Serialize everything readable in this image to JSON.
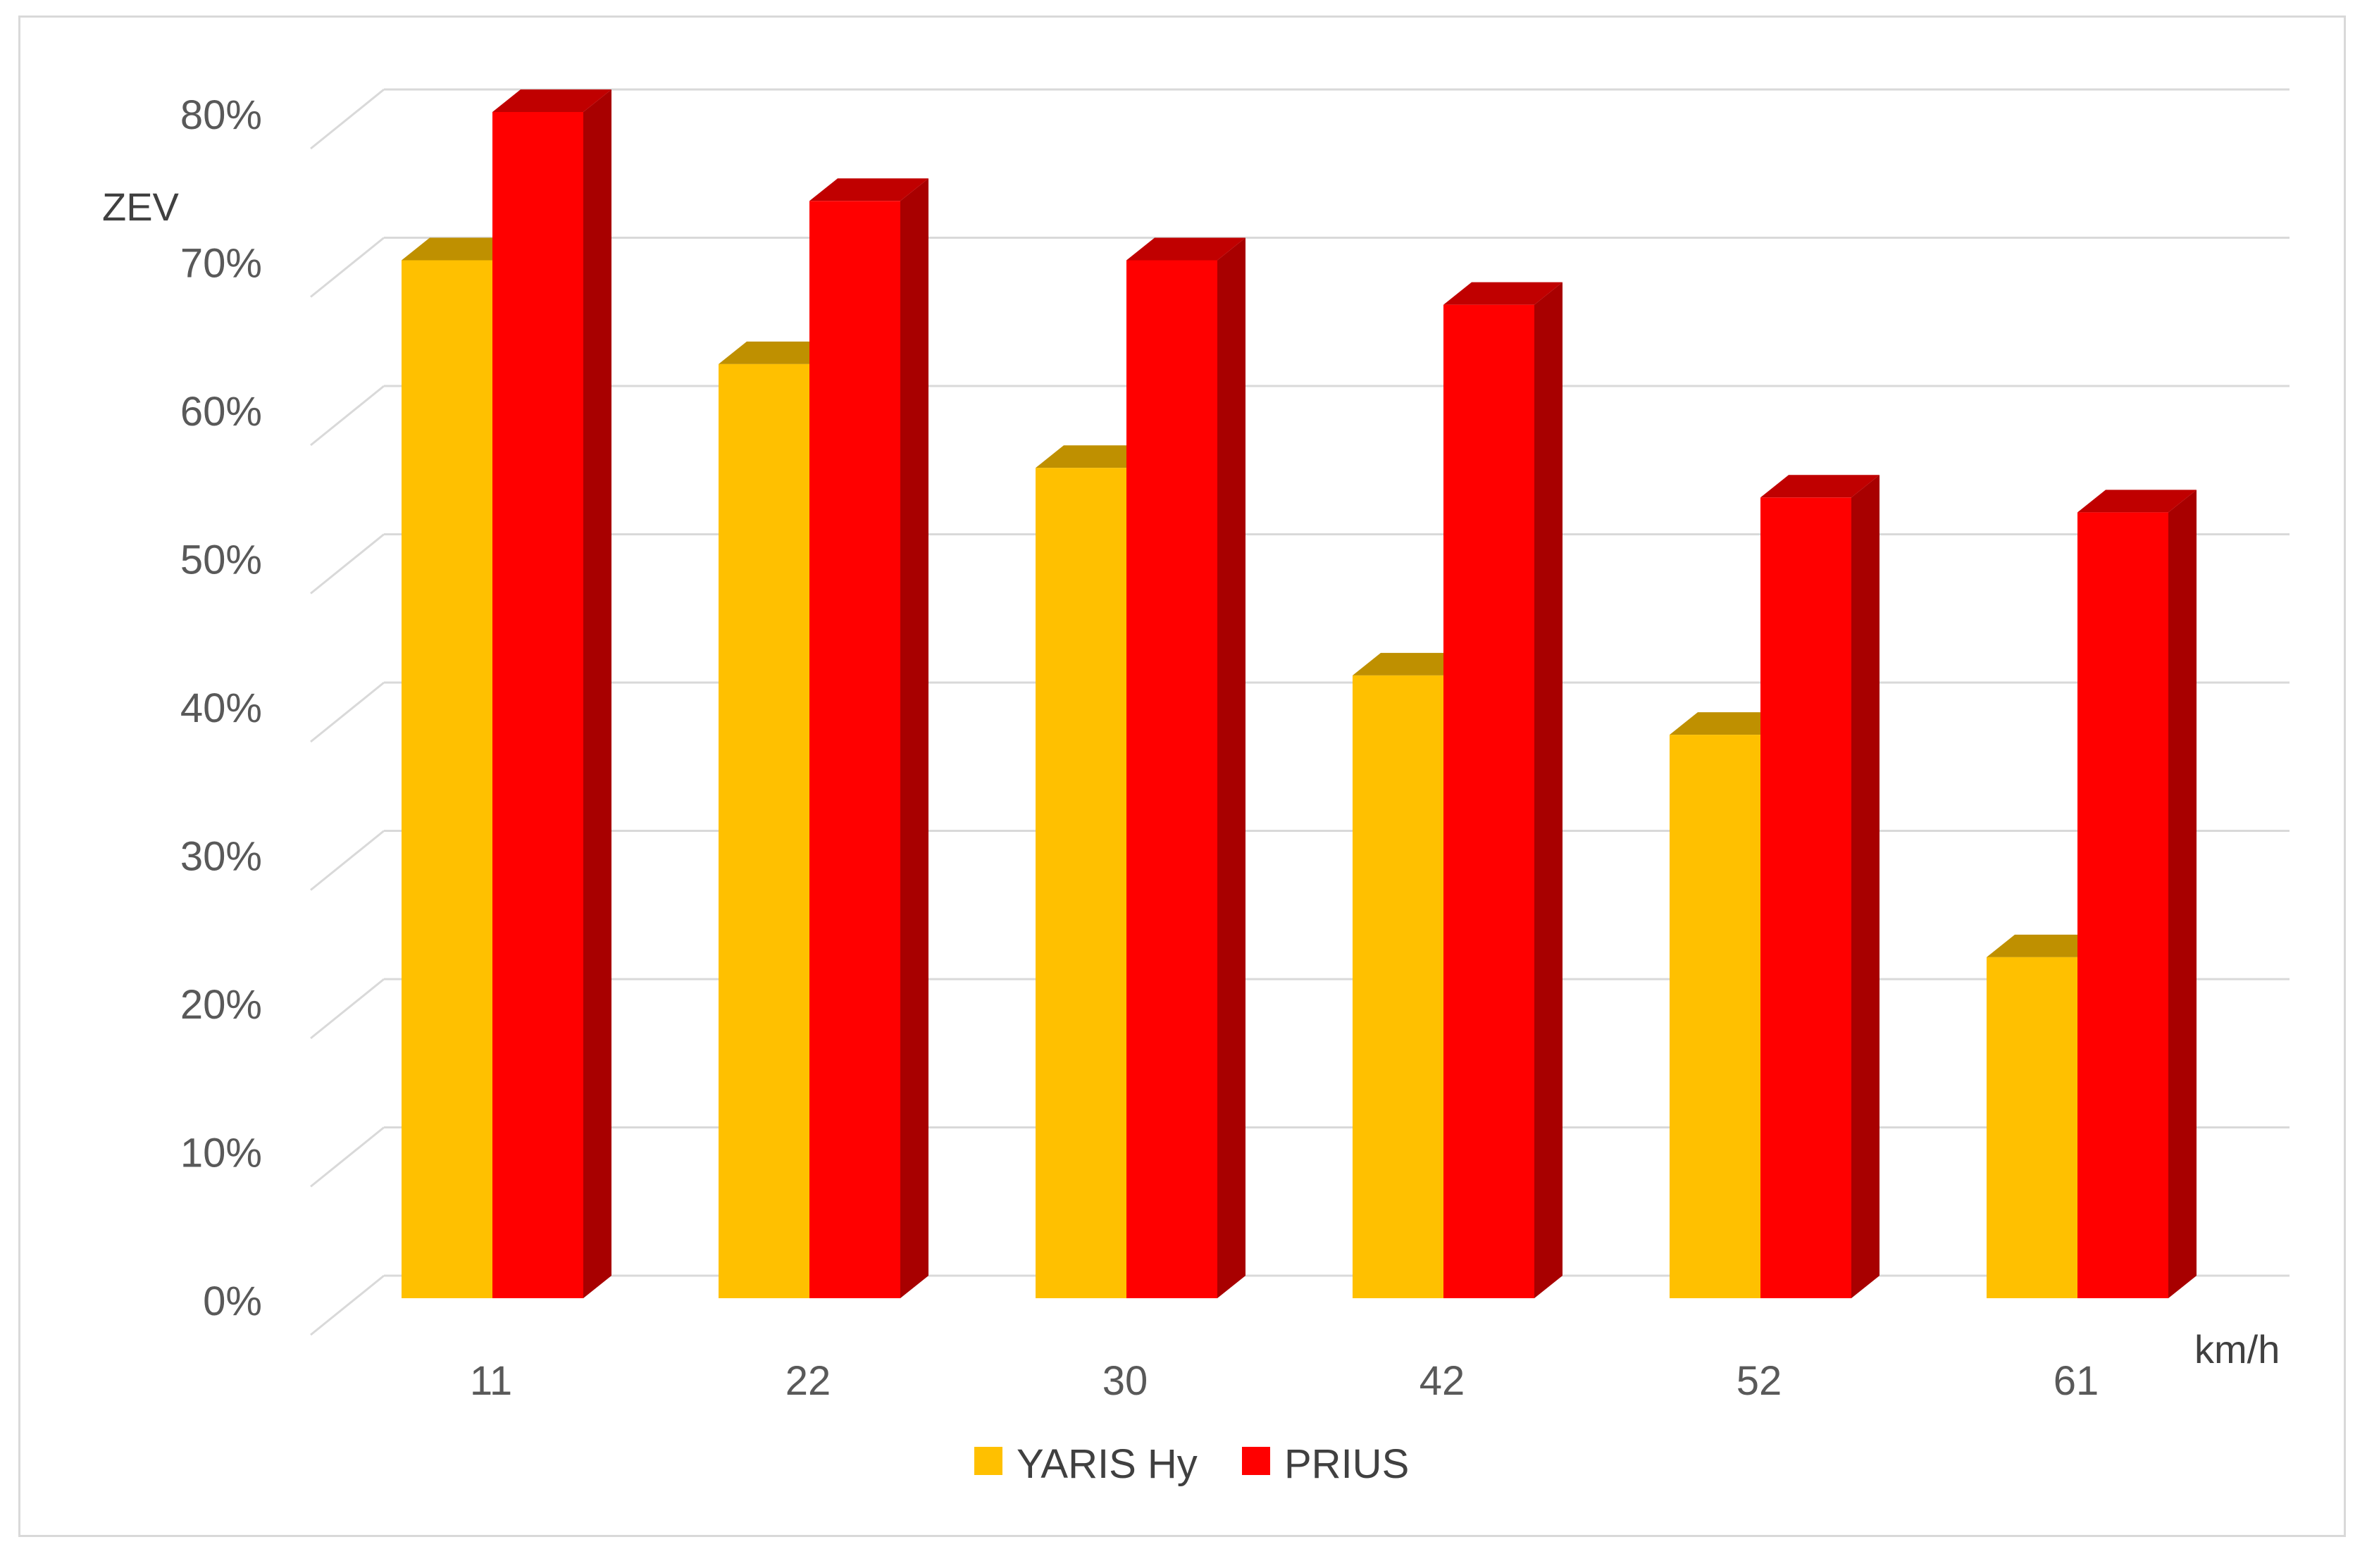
{
  "chart_data": {
    "type": "bar",
    "style": "3d-clustered-column",
    "categories": [
      "11",
      "22",
      "30",
      "42",
      "52",
      "61"
    ],
    "series": [
      {
        "name": "YARIS Hy",
        "values": [
          70,
          63,
          56,
          42,
          38,
          23
        ],
        "color": "#FFC000",
        "top_color": "#BF9000"
      },
      {
        "name": "PRIUS",
        "values": [
          80,
          74,
          70,
          67,
          54,
          53
        ],
        "color": "#FF0000",
        "top_color": "#C00000",
        "side_color": "#A80000"
      }
    ],
    "title": "",
    "xlabel": "km/h",
    "ylabel": "ZEV",
    "ylim": [
      0,
      80
    ],
    "yticks": [
      "0%",
      "10%",
      "20%",
      "30%",
      "40%",
      "50%",
      "60%",
      "70%",
      "80%"
    ],
    "grid": true,
    "legend_position": "bottom"
  }
}
